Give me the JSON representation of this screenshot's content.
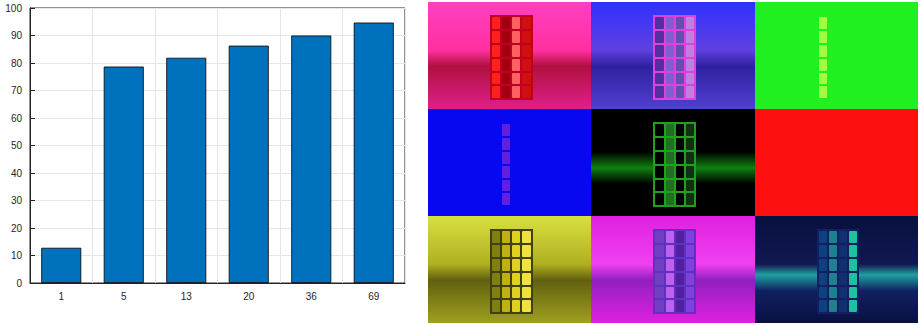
{
  "chart_data": {
    "type": "bar",
    "categories": [
      "1",
      "5",
      "13",
      "20",
      "36",
      "69"
    ],
    "values": [
      12.8,
      78.7,
      81.9,
      86.3,
      90.0,
      94.7
    ],
    "color": "#0072bd",
    "ylim": [
      0,
      100
    ],
    "yticks": [
      0,
      10,
      20,
      30,
      40,
      50,
      60,
      70,
      80,
      90,
      100
    ],
    "grid": true
  }
}
